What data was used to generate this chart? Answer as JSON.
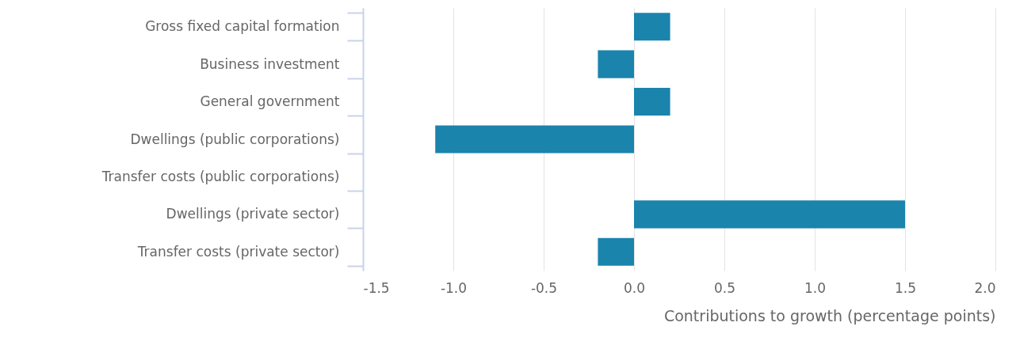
{
  "chart_data": {
    "type": "bar",
    "orientation": "horizontal",
    "xlabel": "Contributions to growth (percentage points)",
    "categories": [
      "Gross fixed capital formation",
      "Business investment",
      "General government",
      "Dwellings (public corporations)",
      "Transfer costs (public corporations)",
      "Dwellings (private sector)",
      "Transfer costs (private sector)"
    ],
    "values": [
      0.2,
      -0.2,
      0.2,
      -1.1,
      0,
      1.5,
      -0.2
    ],
    "color": "#1a84ad",
    "xlim": [
      -1.5,
      2
    ],
    "xticks": [
      -1.5,
      {
        "value": -1,
        "label": "-1.0"
      },
      -0.5,
      {
        "value": 0,
        "label": "0.0"
      },
      0.5,
      {
        "value": 1,
        "label": "1.0"
      },
      1.5,
      {
        "value": 2,
        "label": "2.0"
      }
    ],
    "grid": "x"
  }
}
